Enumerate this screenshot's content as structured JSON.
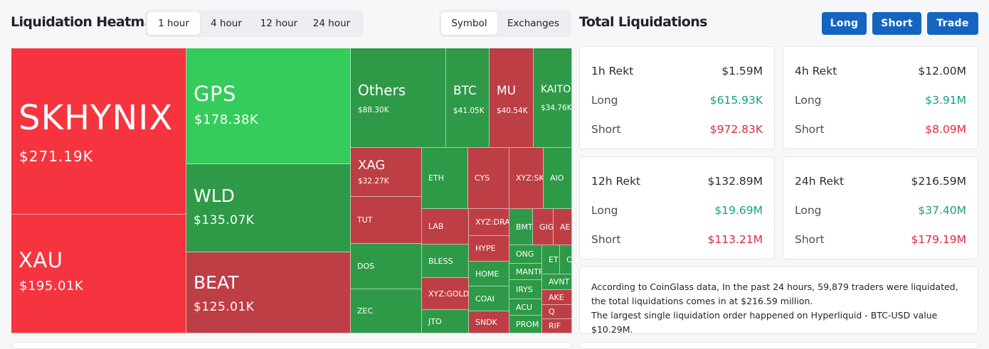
{
  "heatmap": {
    "title": "Liquidation Heatmap",
    "time_options": [
      "1 hour",
      "4 hour",
      "12 hour",
      "24 hour"
    ],
    "active_time": "1 hour",
    "view_options": [
      "Symbol",
      "Exchanges"
    ],
    "active_view": "Symbol",
    "tiles": [
      {
        "symbol": "SKHYNIX",
        "value": "$271.19K"
      },
      {
        "symbol": "XAU",
        "value": "$195.01K"
      },
      {
        "symbol": "GPS",
        "value": "$178.38K"
      },
      {
        "symbol": "WLD",
        "value": "$135.07K"
      },
      {
        "symbol": "BEAT",
        "value": "$125.01K"
      },
      {
        "symbol": "Others",
        "value": "$88.30K"
      },
      {
        "symbol": "BTC",
        "value": "$41.05K"
      },
      {
        "symbol": "MU",
        "value": "$40.54K"
      },
      {
        "symbol": "KAITO",
        "value": "$34.76K"
      },
      {
        "symbol": "XAG",
        "value": "$32.27K"
      },
      {
        "symbol": "TUT"
      },
      {
        "symbol": "DOS"
      },
      {
        "symbol": "ZEC"
      },
      {
        "symbol": "ETH"
      },
      {
        "symbol": "CYS"
      },
      {
        "symbol": "XYZ:SK"
      },
      {
        "symbol": "AIO"
      },
      {
        "symbol": "LAB"
      },
      {
        "symbol": "XYZ:DRA"
      },
      {
        "symbol": "BMT"
      },
      {
        "symbol": "GIG"
      },
      {
        "symbol": "AE"
      },
      {
        "symbol": "HYPE"
      },
      {
        "symbol": "BLESS"
      },
      {
        "symbol": "ONG"
      },
      {
        "symbol": "ET"
      },
      {
        "symbol": "C"
      },
      {
        "symbol": "HOME"
      },
      {
        "symbol": "MANTR"
      },
      {
        "symbol": "AVNT"
      },
      {
        "symbol": "XYZ:GOLD"
      },
      {
        "symbol": "COAI"
      },
      {
        "symbol": "IRYS"
      },
      {
        "symbol": "AKE"
      },
      {
        "symbol": "ACU"
      },
      {
        "symbol": "Q"
      },
      {
        "symbol": "JTO"
      },
      {
        "symbol": "SNDK"
      },
      {
        "symbol": "PROM"
      },
      {
        "symbol": "RIF"
      }
    ]
  },
  "total": {
    "title": "Total Liquidations",
    "buttons": {
      "long": "Long",
      "short": "Short",
      "trade": "Trade"
    },
    "cards": [
      {
        "label": "1h Rekt",
        "total": "$1.59M",
        "long_label": "Long",
        "long": "$615.93K",
        "short_label": "Short",
        "short": "$972.83K"
      },
      {
        "label": "4h Rekt",
        "total": "$12.00M",
        "long_label": "Long",
        "long": "$3.91M",
        "short_label": "Short",
        "short": "$8.09M"
      },
      {
        "label": "12h Rekt",
        "total": "$132.89M",
        "long_label": "Long",
        "long": "$19.69M",
        "short_label": "Short",
        "short": "$113.21M"
      },
      {
        "label": "24h Rekt",
        "total": "$216.59M",
        "long_label": "Long",
        "long": "$37.40M",
        "short_label": "Short",
        "short": "$179.19M"
      }
    ],
    "summary_line1": "According to CoinGlass data, In the past 24 hours, 59,879 traders were liquidated, the total liquidations comes in at $216.59 million.",
    "summary_line2": "The largest single liquidation order happened on Hyperliquid - BTC-USD value $10.29M."
  },
  "colors": {
    "accent": "#1565c0",
    "long_green": "#16a085",
    "short_red": "#e0283c",
    "tile_red": "#be3e45",
    "tile_bright_red": "#f6343f",
    "tile_green": "#2e9a48",
    "tile_bright_green": "#34cc5b"
  }
}
